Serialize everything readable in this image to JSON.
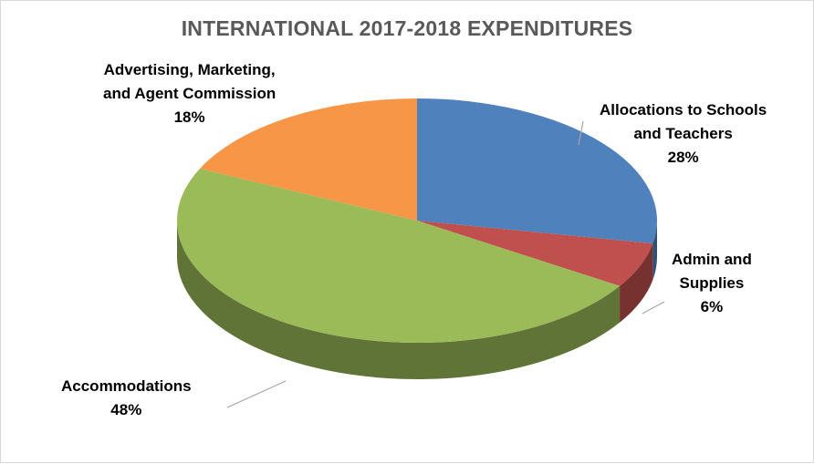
{
  "chart_data": {
    "type": "pie",
    "variant": "3d",
    "title": "INTERNATIONAL 2017-2018 EXPENDITURES",
    "series": [
      {
        "name": "",
        "slices": [
          {
            "label_lines": [
              "Allocations to Schools",
              "and Teachers"
            ],
            "percent_text": "28%",
            "value": 28,
            "color": "#4f81bd"
          },
          {
            "label_lines": [
              "Admin and",
              "Supplies"
            ],
            "percent_text": "6%",
            "value": 6,
            "color": "#c0504d"
          },
          {
            "label_lines": [
              "Accommodations"
            ],
            "percent_text": "48%",
            "value": 48,
            "color": "#9bbb59"
          },
          {
            "label_lines": [
              "Advertising, Marketing,",
              "and Agent Commission"
            ],
            "percent_text": "18%",
            "value": 18,
            "color": "#f79646"
          }
        ]
      }
    ],
    "legend": "none",
    "grid": false
  }
}
